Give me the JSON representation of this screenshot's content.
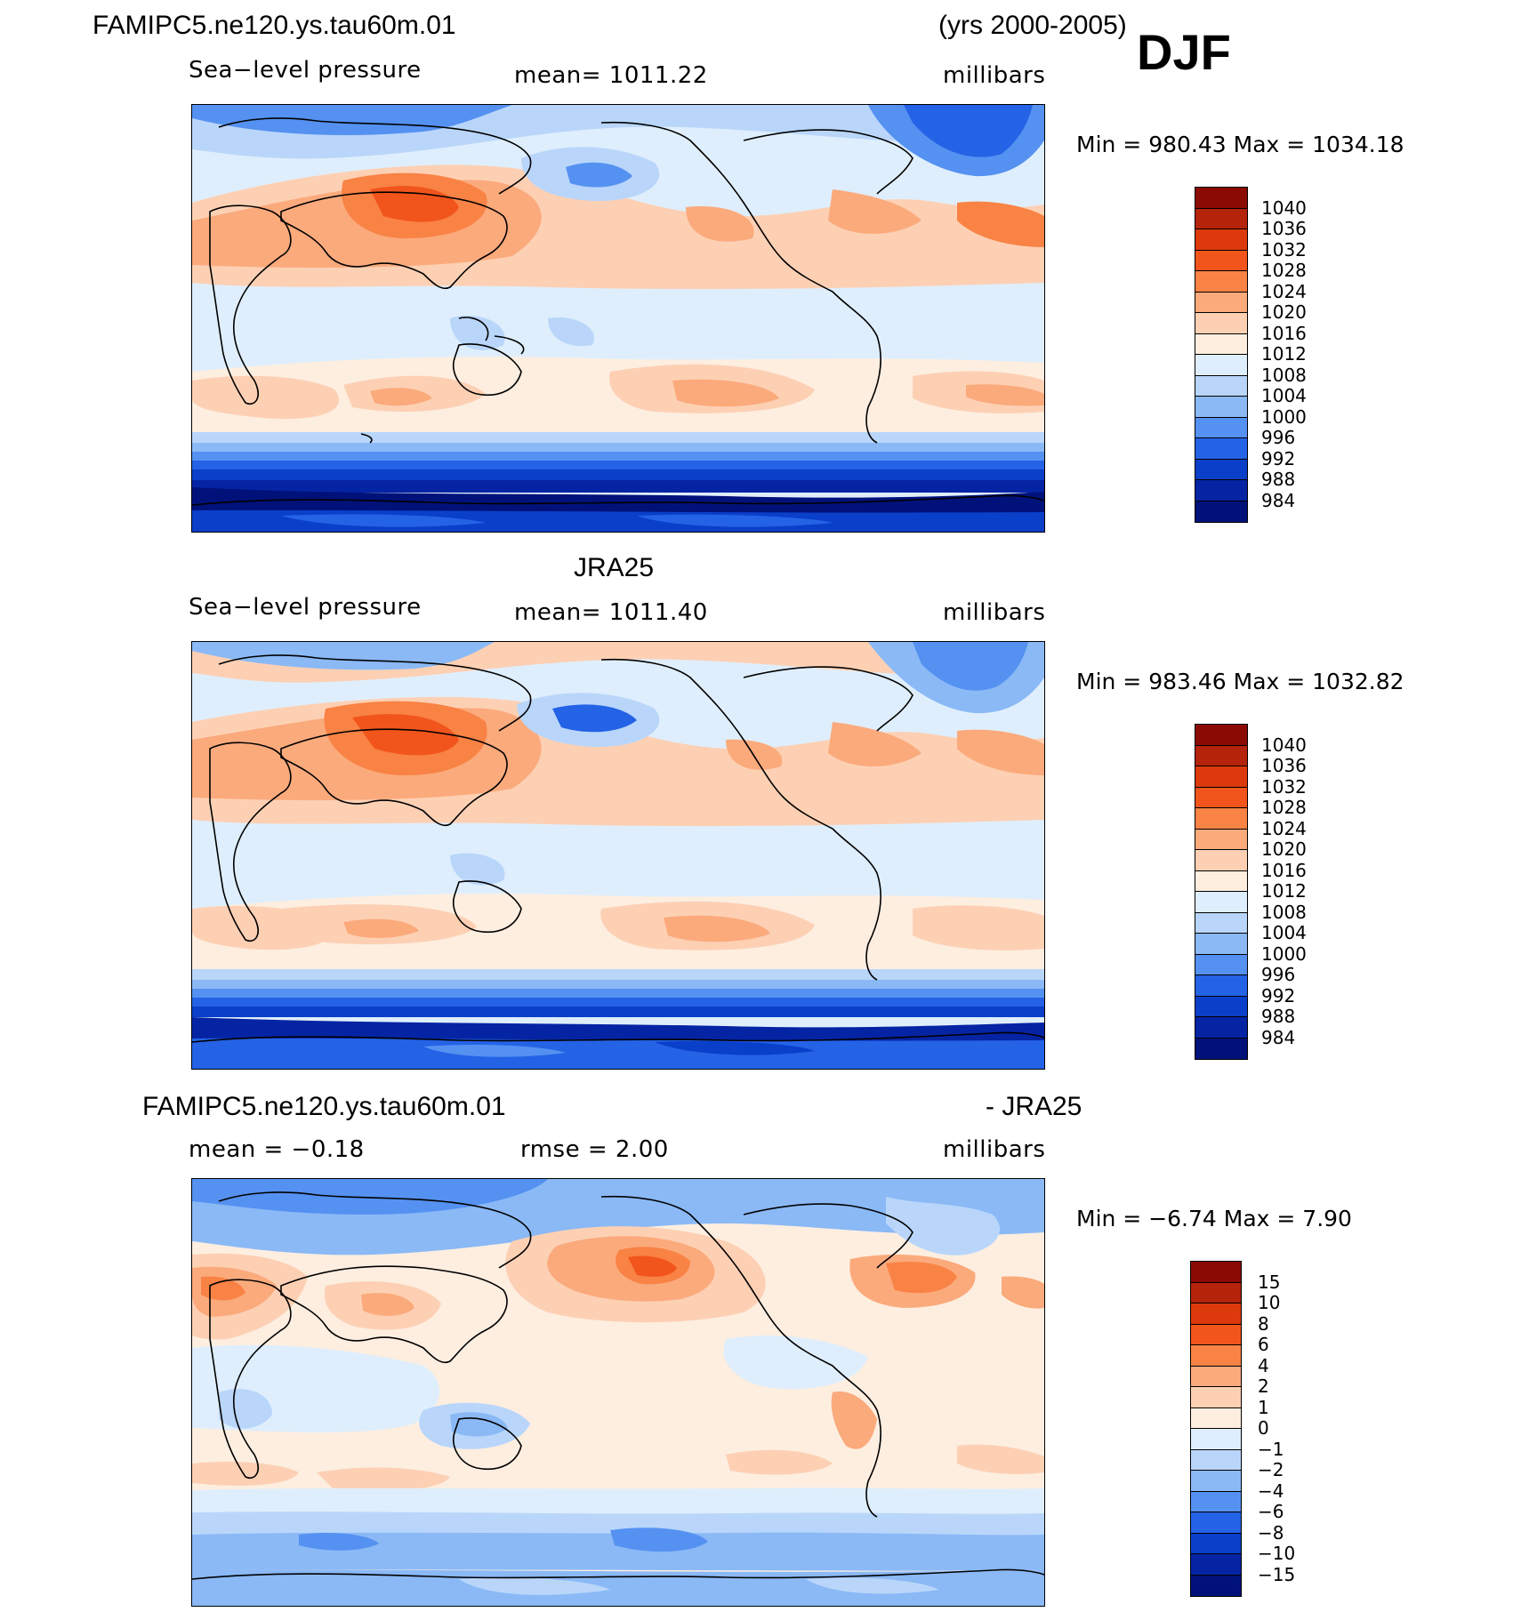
{
  "header": {
    "case_name": "FAMIPC5.ne120.ys.tau60m.01",
    "years": "(yrs 2000-2005)",
    "season": "DJF"
  },
  "panels": [
    {
      "id": "model",
      "title": "",
      "variable": "Sea−level pressure",
      "stat_text": "mean=  1011.22",
      "units": "millibars",
      "minmax": "Min  =  980.43  Max  =  1034.18"
    },
    {
      "id": "obs",
      "title": "JRA25",
      "variable": "Sea−level pressure",
      "stat_text": "mean=  1011.40",
      "units": "millibars",
      "minmax": "Min  =  983.46  Max  =  1032.82"
    },
    {
      "id": "diff",
      "title_left": "FAMIPC5.ne120.ys.tau60m.01",
      "title_right": "- JRA25",
      "mean_text": "mean  =   −0.18",
      "rmse_text": "rmse  =     2.00",
      "units": "millibars",
      "minmax": "Min  =    −6.74  Max  =     7.90"
    }
  ],
  "colorbars": {
    "pressure": {
      "labels": [
        "1040",
        "1036",
        "1032",
        "1028",
        "1024",
        "1020",
        "1016",
        "1012",
        "1008",
        "1004",
        "1000",
        "996",
        "992",
        "988",
        "984"
      ],
      "colors": [
        "#8b0a04",
        "#b5230a",
        "#dc3a0c",
        "#f1551c",
        "#f98245",
        "#fbaa7c",
        "#fdd0b4",
        "#fdeee0",
        "#dfeefc",
        "#b9d6fa",
        "#8ab9f6",
        "#5591f1",
        "#2462e6",
        "#0a3fc9",
        "#0524a4",
        "#00127a"
      ]
    },
    "difference": {
      "labels": [
        "15",
        "10",
        "8",
        "6",
        "4",
        "2",
        "1",
        "0",
        "−1",
        "−2",
        "−4",
        "−6",
        "−8",
        "−10",
        "−15"
      ],
      "colors": [
        "#8b0a04",
        "#b5230a",
        "#dc3a0c",
        "#f1551c",
        "#f98245",
        "#fbaa7c",
        "#fdd0b4",
        "#fdeee0",
        "#dfeefc",
        "#b9d6fa",
        "#8ab9f6",
        "#5591f1",
        "#2462e6",
        "#0a3fc9",
        "#0524a4",
        "#00127a"
      ]
    }
  }
}
